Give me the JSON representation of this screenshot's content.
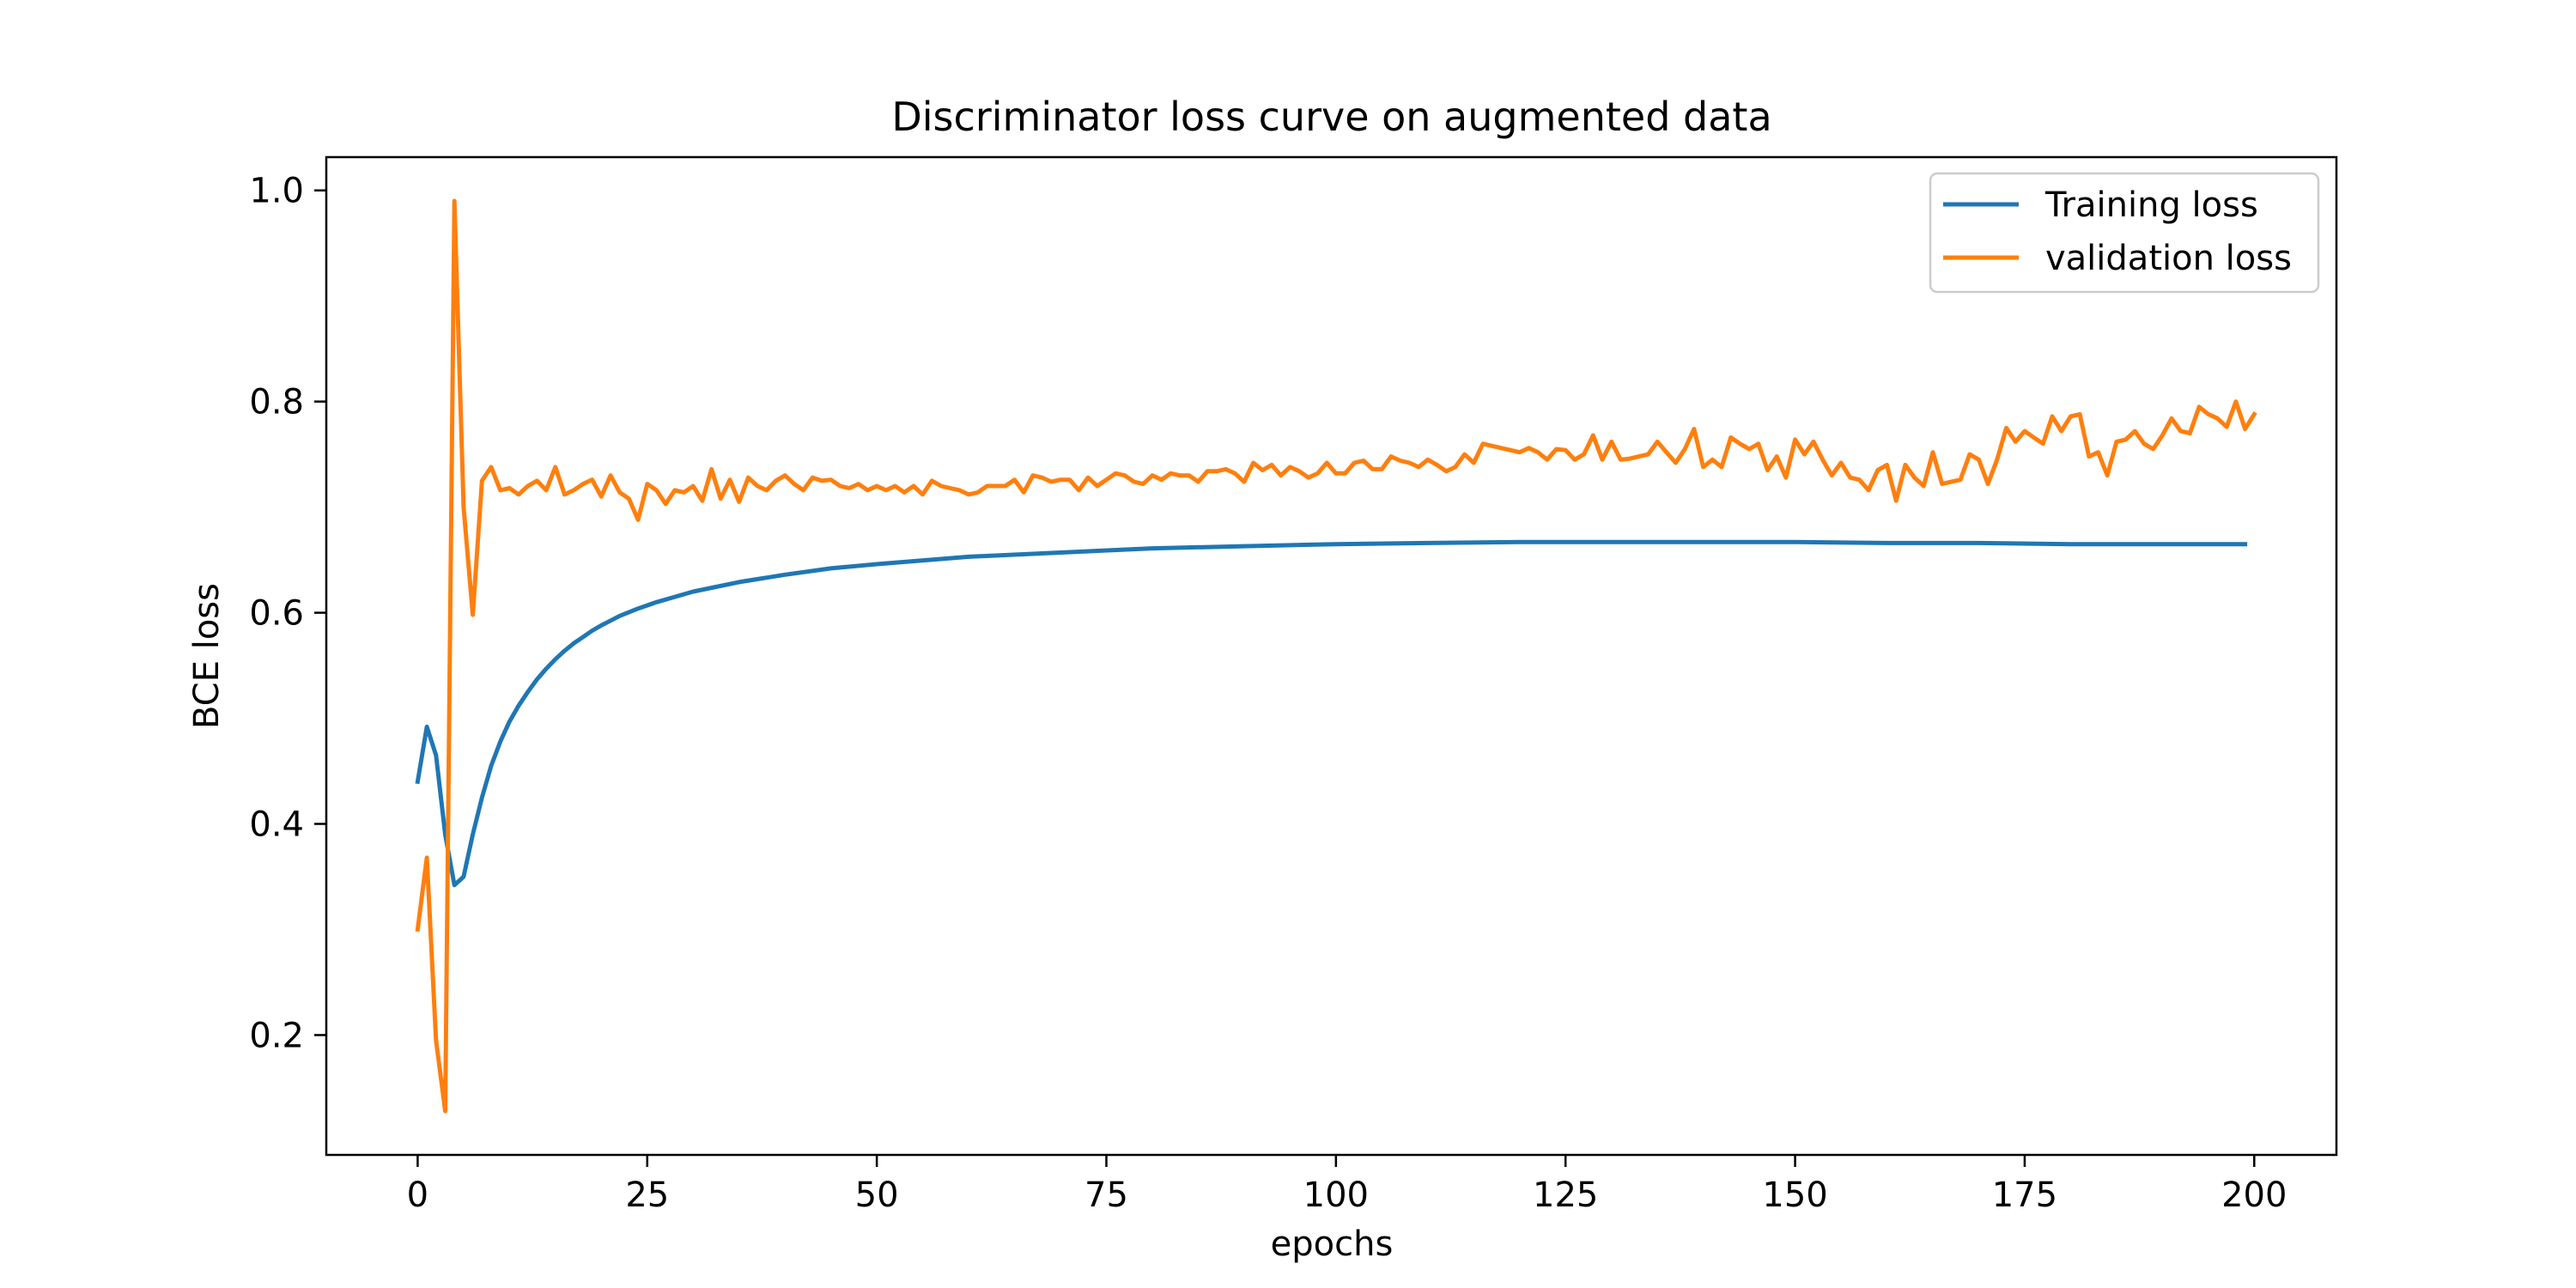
{
  "chart_data": {
    "type": "line",
    "title": "Discriminator loss curve on augmented data",
    "xlabel": "epochs",
    "ylabel": "BCE loss",
    "xlim": [
      -9.95,
      208.95
    ],
    "ylim": [
      0.0865,
      1.0315
    ],
    "xticks": [
      0,
      25,
      50,
      75,
      100,
      125,
      150,
      175,
      200
    ],
    "yticks": [
      0.2,
      0.4,
      0.6,
      0.8,
      1.0
    ],
    "xtick_labels": [
      "0",
      "25",
      "50",
      "75",
      "100",
      "125",
      "150",
      "175",
      "200"
    ],
    "ytick_labels": [
      "0.2",
      "0.4",
      "0.6",
      "0.8",
      "1.0"
    ],
    "grid": false,
    "legend_position": "top-right",
    "series": [
      {
        "name": "Training loss",
        "color": "#1f77b4",
        "points": [
          [
            0,
            0.44
          ],
          [
            1,
            0.492
          ],
          [
            2,
            0.465
          ],
          [
            3,
            0.39
          ],
          [
            4,
            0.342
          ],
          [
            5,
            0.35
          ],
          [
            6,
            0.39
          ],
          [
            7,
            0.425
          ],
          [
            8,
            0.455
          ],
          [
            9,
            0.478
          ],
          [
            10,
            0.497
          ],
          [
            11,
            0.512
          ],
          [
            12,
            0.525
          ],
          [
            13,
            0.537
          ],
          [
            14,
            0.547
          ],
          [
            15,
            0.556
          ],
          [
            16,
            0.564
          ],
          [
            17,
            0.571
          ],
          [
            18,
            0.577
          ],
          [
            19,
            0.583
          ],
          [
            20,
            0.588
          ],
          [
            22,
            0.597
          ],
          [
            24,
            0.604
          ],
          [
            26,
            0.61
          ],
          [
            28,
            0.615
          ],
          [
            30,
            0.62
          ],
          [
            35,
            0.629
          ],
          [
            40,
            0.636
          ],
          [
            45,
            0.642
          ],
          [
            50,
            0.646
          ],
          [
            60,
            0.653
          ],
          [
            70,
            0.657
          ],
          [
            80,
            0.661
          ],
          [
            90,
            0.663
          ],
          [
            100,
            0.665
          ],
          [
            110,
            0.666
          ],
          [
            120,
            0.667
          ],
          [
            130,
            0.667
          ],
          [
            140,
            0.667
          ],
          [
            150,
            0.667
          ],
          [
            160,
            0.666
          ],
          [
            170,
            0.666
          ],
          [
            180,
            0.665
          ],
          [
            190,
            0.665
          ],
          [
            199,
            0.665
          ]
        ]
      },
      {
        "name": "validation loss",
        "color": "#ff7f0e",
        "points": [
          [
            0,
            0.3
          ],
          [
            1,
            0.368
          ],
          [
            2,
            0.195
          ],
          [
            3,
            0.128
          ],
          [
            4,
            0.99
          ],
          [
            5,
            0.7
          ],
          [
            6,
            0.598
          ],
          [
            7,
            0.725
          ],
          [
            8,
            0.738
          ],
          [
            9,
            0.716
          ],
          [
            10,
            0.718
          ],
          [
            11,
            0.712
          ],
          [
            12,
            0.72
          ],
          [
            13,
            0.725
          ],
          [
            14,
            0.716
          ],
          [
            15,
            0.738
          ],
          [
            16,
            0.712
          ],
          [
            17,
            0.716
          ],
          [
            18,
            0.722
          ],
          [
            19,
            0.726
          ],
          [
            20,
            0.71
          ],
          [
            21,
            0.73
          ],
          [
            22,
            0.714
          ],
          [
            23,
            0.708
          ],
          [
            24,
            0.688
          ],
          [
            25,
            0.722
          ],
          [
            26,
            0.716
          ],
          [
            27,
            0.703
          ],
          [
            28,
            0.716
          ],
          [
            29,
            0.714
          ],
          [
            30,
            0.72
          ],
          [
            31,
            0.706
          ],
          [
            32,
            0.736
          ],
          [
            33,
            0.708
          ],
          [
            34,
            0.726
          ],
          [
            35,
            0.705
          ],
          [
            36,
            0.728
          ],
          [
            37,
            0.72
          ],
          [
            38,
            0.716
          ],
          [
            39,
            0.725
          ],
          [
            40,
            0.73
          ],
          [
            41,
            0.722
          ],
          [
            42,
            0.716
          ],
          [
            43,
            0.728
          ],
          [
            44,
            0.725
          ],
          [
            45,
            0.726
          ],
          [
            46,
            0.72
          ],
          [
            47,
            0.718
          ],
          [
            48,
            0.722
          ],
          [
            49,
            0.716
          ],
          [
            50,
            0.72
          ],
          [
            51,
            0.716
          ],
          [
            52,
            0.72
          ],
          [
            53,
            0.714
          ],
          [
            54,
            0.72
          ],
          [
            55,
            0.712
          ],
          [
            56,
            0.725
          ],
          [
            57,
            0.72
          ],
          [
            58,
            0.718
          ],
          [
            59,
            0.716
          ],
          [
            60,
            0.712
          ],
          [
            61,
            0.714
          ],
          [
            62,
            0.72
          ],
          [
            63,
            0.72
          ],
          [
            64,
            0.72
          ],
          [
            65,
            0.726
          ],
          [
            66,
            0.714
          ],
          [
            67,
            0.73
          ],
          [
            68,
            0.728
          ],
          [
            69,
            0.724
          ],
          [
            70,
            0.726
          ],
          [
            71,
            0.726
          ],
          [
            72,
            0.716
          ],
          [
            73,
            0.728
          ],
          [
            74,
            0.72
          ],
          [
            75,
            0.726
          ],
          [
            76,
            0.732
          ],
          [
            77,
            0.73
          ],
          [
            78,
            0.724
          ],
          [
            79,
            0.722
          ],
          [
            80,
            0.73
          ],
          [
            81,
            0.726
          ],
          [
            82,
            0.732
          ],
          [
            83,
            0.73
          ],
          [
            84,
            0.73
          ],
          [
            85,
            0.724
          ],
          [
            86,
            0.734
          ],
          [
            87,
            0.734
          ],
          [
            88,
            0.736
          ],
          [
            89,
            0.732
          ],
          [
            90,
            0.724
          ],
          [
            91,
            0.742
          ],
          [
            92,
            0.735
          ],
          [
            93,
            0.74
          ],
          [
            94,
            0.73
          ],
          [
            95,
            0.738
          ],
          [
            96,
            0.734
          ],
          [
            97,
            0.728
          ],
          [
            98,
            0.732
          ],
          [
            99,
            0.742
          ],
          [
            100,
            0.732
          ],
          [
            101,
            0.732
          ],
          [
            102,
            0.742
          ],
          [
            103,
            0.744
          ],
          [
            104,
            0.736
          ],
          [
            105,
            0.736
          ],
          [
            106,
            0.748
          ],
          [
            107,
            0.744
          ],
          [
            108,
            0.742
          ],
          [
            109,
            0.738
          ],
          [
            110,
            0.745
          ],
          [
            111,
            0.74
          ],
          [
            112,
            0.734
          ],
          [
            113,
            0.738
          ],
          [
            114,
            0.75
          ],
          [
            115,
            0.742
          ],
          [
            116,
            0.76
          ],
          [
            117,
            0.758
          ],
          [
            118,
            0.756
          ],
          [
            119,
            0.754
          ],
          [
            120,
            0.752
          ],
          [
            121,
            0.756
          ],
          [
            122,
            0.752
          ],
          [
            123,
            0.745
          ],
          [
            124,
            0.755
          ],
          [
            125,
            0.754
          ],
          [
            126,
            0.745
          ],
          [
            127,
            0.75
          ],
          [
            128,
            0.768
          ],
          [
            129,
            0.745
          ],
          [
            130,
            0.762
          ],
          [
            131,
            0.745
          ],
          [
            132,
            0.746
          ],
          [
            133,
            0.748
          ],
          [
            134,
            0.75
          ],
          [
            135,
            0.762
          ],
          [
            136,
            0.752
          ],
          [
            137,
            0.742
          ],
          [
            138,
            0.755
          ],
          [
            139,
            0.774
          ],
          [
            140,
            0.738
          ],
          [
            141,
            0.745
          ],
          [
            142,
            0.738
          ],
          [
            143,
            0.766
          ],
          [
            144,
            0.76
          ],
          [
            145,
            0.755
          ],
          [
            146,
            0.76
          ],
          [
            147,
            0.735
          ],
          [
            148,
            0.748
          ],
          [
            149,
            0.728
          ],
          [
            150,
            0.764
          ],
          [
            151,
            0.75
          ],
          [
            152,
            0.762
          ],
          [
            153,
            0.745
          ],
          [
            154,
            0.73
          ],
          [
            155,
            0.742
          ],
          [
            156,
            0.728
          ],
          [
            157,
            0.726
          ],
          [
            158,
            0.716
          ],
          [
            159,
            0.735
          ],
          [
            160,
            0.74
          ],
          [
            161,
            0.706
          ],
          [
            162,
            0.74
          ],
          [
            163,
            0.728
          ],
          [
            164,
            0.72
          ],
          [
            165,
            0.752
          ],
          [
            166,
            0.722
          ],
          [
            167,
            0.724
          ],
          [
            168,
            0.726
          ],
          [
            169,
            0.75
          ],
          [
            170,
            0.745
          ],
          [
            171,
            0.722
          ],
          [
            172,
            0.745
          ],
          [
            173,
            0.775
          ],
          [
            174,
            0.762
          ],
          [
            175,
            0.772
          ],
          [
            176,
            0.766
          ],
          [
            177,
            0.76
          ],
          [
            178,
            0.786
          ],
          [
            179,
            0.772
          ],
          [
            180,
            0.786
          ],
          [
            181,
            0.788
          ],
          [
            182,
            0.748
          ],
          [
            183,
            0.752
          ],
          [
            184,
            0.73
          ],
          [
            185,
            0.762
          ],
          [
            186,
            0.764
          ],
          [
            187,
            0.772
          ],
          [
            188,
            0.76
          ],
          [
            189,
            0.755
          ],
          [
            190,
            0.768
          ],
          [
            191,
            0.784
          ],
          [
            192,
            0.772
          ],
          [
            193,
            0.77
          ],
          [
            194,
            0.795
          ],
          [
            195,
            0.788
          ],
          [
            196,
            0.784
          ],
          [
            197,
            0.776
          ],
          [
            198,
            0.8
          ],
          [
            199,
            0.774
          ],
          [
            200,
            0.788
          ]
        ]
      }
    ]
  }
}
